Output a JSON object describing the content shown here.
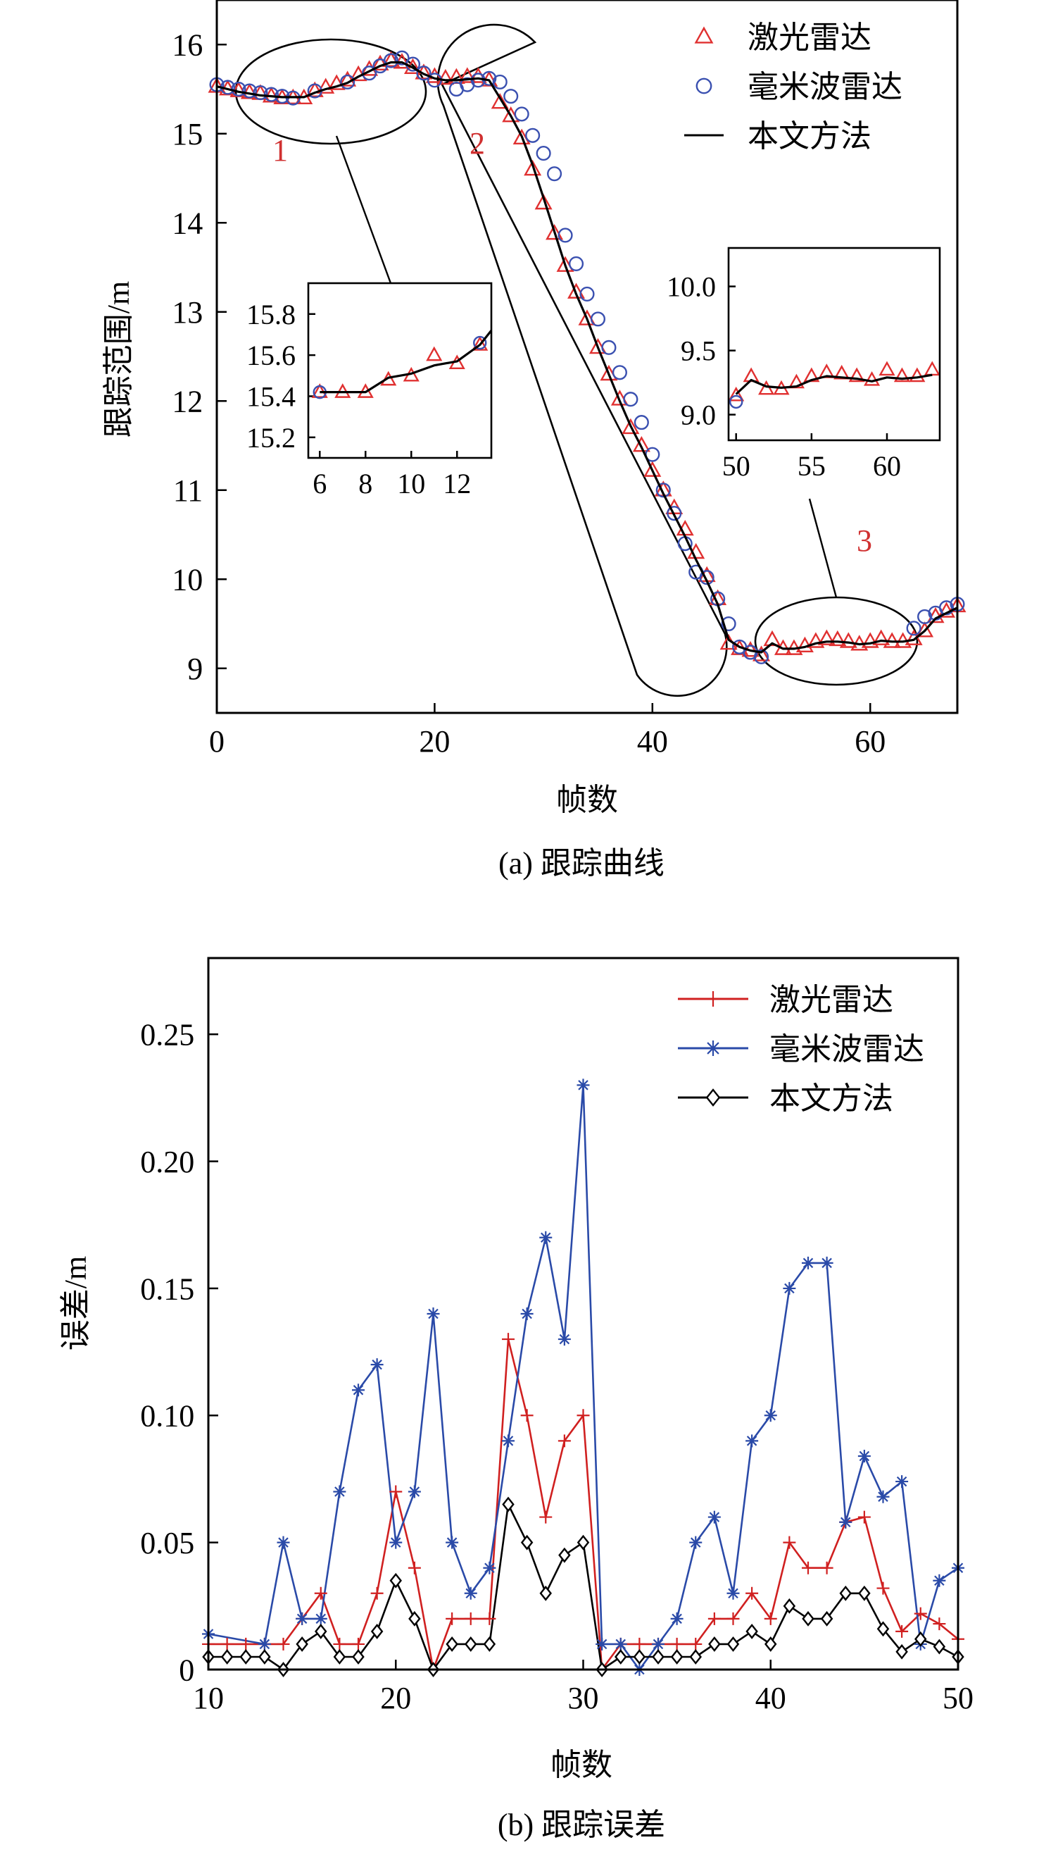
{
  "chart_data": [
    {
      "id": "a",
      "type": "line",
      "caption": "(a) 跟踪曲线",
      "xlabel": "帧数",
      "ylabel": "跟踪范围/m",
      "xlim": [
        0,
        68
      ],
      "ylim": [
        8.5,
        16.5
      ],
      "xticks": [
        0,
        20,
        40,
        60
      ],
      "yticks": [
        9,
        10,
        11,
        12,
        13,
        14,
        15,
        16
      ],
      "legend": {
        "position": "top-right",
        "entries": [
          {
            "name": "激光雷达",
            "marker": "triangle",
            "color": "#e03030"
          },
          {
            "name": "毫米波雷达",
            "marker": "circle",
            "color": "#3a50b0"
          },
          {
            "name": "本文方法",
            "marker": "line",
            "color": "#000000"
          }
        ]
      },
      "series": [
        {
          "name": "激光雷达",
          "marker": "triangle",
          "color": "#e03030",
          "x": [
            0,
            1,
            2,
            3,
            4,
            5,
            6,
            7,
            8,
            9,
            10,
            11,
            12,
            13,
            14,
            15,
            16,
            17,
            18,
            19,
            20,
            21,
            22,
            23,
            24,
            25,
            26,
            27,
            28,
            29,
            30,
            31,
            32,
            33,
            34,
            35,
            36,
            37,
            38,
            39,
            40,
            41,
            42,
            43,
            44,
            45,
            46,
            47,
            48,
            49,
            50,
            51,
            52,
            53,
            54,
            55,
            56,
            57,
            58,
            59,
            60,
            61,
            62,
            63,
            64,
            65,
            66,
            67,
            68
          ],
          "y": [
            15.53,
            15.5,
            15.48,
            15.46,
            15.45,
            15.42,
            15.4,
            15.4,
            15.4,
            15.48,
            15.52,
            15.56,
            15.6,
            15.66,
            15.72,
            15.78,
            15.82,
            15.8,
            15.74,
            15.68,
            15.64,
            15.62,
            15.63,
            15.64,
            15.64,
            15.6,
            15.35,
            15.2,
            14.95,
            14.6,
            14.22,
            13.88,
            13.52,
            13.22,
            12.92,
            12.6,
            12.3,
            12.02,
            11.7,
            11.5,
            11.22,
            11.0,
            10.8,
            10.56,
            10.3,
            10.04,
            9.78,
            9.28,
            9.22,
            9.2,
            9.15,
            9.32,
            9.22,
            9.22,
            9.25,
            9.3,
            9.33,
            9.32,
            9.3,
            9.27,
            9.3,
            9.33,
            9.3,
            9.3,
            9.33,
            9.42,
            9.58,
            9.64,
            9.7
          ]
        },
        {
          "name": "毫米波雷达",
          "marker": "circle",
          "color": "#3a50b0",
          "x": [
            0,
            1,
            2,
            3,
            4,
            5,
            6,
            7,
            9,
            12,
            14,
            15,
            16,
            17,
            18,
            19,
            20,
            22,
            23,
            24,
            25,
            26,
            27,
            28,
            29,
            30,
            31,
            32,
            33,
            34,
            35,
            36,
            37,
            38,
            39,
            40,
            41,
            42,
            43,
            44,
            45,
            46,
            47,
            48,
            49,
            50,
            64,
            65,
            66,
            67,
            68
          ],
          "y": [
            15.55,
            15.52,
            15.5,
            15.48,
            15.46,
            15.44,
            15.42,
            15.4,
            15.48,
            15.58,
            15.68,
            15.76,
            15.82,
            15.85,
            15.78,
            15.68,
            15.6,
            15.5,
            15.55,
            15.6,
            15.62,
            15.58,
            15.42,
            15.22,
            14.98,
            14.78,
            14.55,
            13.86,
            13.54,
            13.2,
            12.92,
            12.6,
            12.32,
            12.02,
            11.76,
            11.4,
            11.0,
            10.74,
            10.4,
            10.08,
            10.02,
            9.78,
            9.5,
            9.24,
            9.18,
            9.13,
            9.45,
            9.58,
            9.62,
            9.68,
            9.72
          ]
        },
        {
          "name": "本文方法",
          "marker": "line",
          "color": "#000000",
          "x": [
            0,
            1,
            2,
            3,
            4,
            5,
            6,
            7,
            8,
            9,
            10,
            11,
            12,
            13,
            14,
            15,
            16,
            17,
            18,
            19,
            20,
            21,
            22,
            23,
            24,
            25,
            26,
            27,
            28,
            29,
            30,
            31,
            32,
            33,
            34,
            35,
            36,
            37,
            38,
            39,
            40,
            41,
            42,
            43,
            44,
            45,
            46,
            47,
            48,
            49,
            50,
            51,
            52,
            53,
            54,
            55,
            56,
            57,
            58,
            59,
            60,
            61,
            62,
            63,
            64,
            65,
            66,
            67,
            68
          ],
          "y": [
            15.53,
            15.5,
            15.47,
            15.45,
            15.43,
            15.42,
            15.41,
            15.41,
            15.41,
            15.46,
            15.5,
            15.53,
            15.57,
            15.64,
            15.7,
            15.76,
            15.8,
            15.8,
            15.74,
            15.67,
            15.62,
            15.6,
            15.6,
            15.61,
            15.62,
            15.6,
            15.4,
            15.2,
            14.97,
            14.65,
            14.28,
            13.9,
            13.52,
            13.2,
            12.92,
            12.6,
            12.3,
            12.0,
            11.72,
            11.48,
            11.22,
            10.96,
            10.72,
            10.48,
            10.22,
            9.98,
            9.72,
            9.32,
            9.24,
            9.2,
            9.18,
            9.28,
            9.22,
            9.22,
            9.24,
            9.28,
            9.3,
            9.3,
            9.29,
            9.27,
            9.28,
            9.31,
            9.3,
            9.3,
            9.32,
            9.42,
            9.56,
            9.62,
            9.68
          ]
        }
      ],
      "annotations": [
        {
          "text": "1",
          "color": "#d03030"
        },
        {
          "text": "2",
          "color": "#d03030"
        },
        {
          "text": "3",
          "color": "#d03030"
        }
      ],
      "insets": [
        {
          "region": "1",
          "xlim": [
            5.5,
            13.5
          ],
          "ylim": [
            15.1,
            15.95
          ],
          "xticks": [
            6,
            8,
            10,
            12
          ],
          "yticks": [
            15.2,
            15.4,
            15.6,
            15.8
          ],
          "ytick_labels": [
            "15.2",
            "15.4",
            "15.6",
            "15.8"
          ],
          "series": [
            {
              "name": "激光雷达",
              "marker": "triangle",
              "color": "#e03030",
              "x": [
                6,
                7,
                8,
                9,
                10,
                11,
                12,
                13
              ],
              "y": [
                15.42,
                15.42,
                15.42,
                15.48,
                15.5,
                15.6,
                15.56,
                15.65
              ]
            },
            {
              "name": "毫米波雷达",
              "marker": "circle",
              "color": "#3a50b0",
              "x": [
                6,
                13
              ],
              "y": [
                15.42,
                15.66
              ]
            },
            {
              "name": "本文方法",
              "marker": "line",
              "color": "#000000",
              "x": [
                6,
                7,
                8,
                9,
                10,
                11,
                12,
                13,
                13.5
              ],
              "y": [
                15.42,
                15.42,
                15.42,
                15.49,
                15.51,
                15.55,
                15.57,
                15.65,
                15.72
              ]
            }
          ]
        },
        {
          "region": "3",
          "xlim": [
            49.5,
            63.5
          ],
          "ylim": [
            8.8,
            10.3
          ],
          "xticks": [
            50,
            55,
            60
          ],
          "yticks": [
            9.0,
            9.5,
            10.0
          ],
          "ytick_labels": [
            "9.0",
            "9.5",
            "10.0"
          ],
          "series": [
            {
              "name": "激光雷达",
              "marker": "triangle",
              "color": "#e03030",
              "x": [
                50,
                51,
                52,
                53,
                54,
                55,
                56,
                57,
                58,
                59,
                60,
                61,
                62,
                63
              ],
              "y": [
                9.15,
                9.3,
                9.2,
                9.2,
                9.25,
                9.3,
                9.33,
                9.32,
                9.3,
                9.27,
                9.35,
                9.3,
                9.3,
                9.35
              ]
            },
            {
              "name": "毫米波雷达",
              "marker": "circle",
              "color": "#3a50b0",
              "x": [
                50
              ],
              "y": [
                9.1
              ]
            },
            {
              "name": "本文方法",
              "marker": "line",
              "color": "#000000",
              "x": [
                50,
                51,
                52,
                53,
                54,
                55,
                56,
                57,
                58,
                59,
                60,
                61,
                62,
                63
              ],
              "y": [
                9.16,
                9.27,
                9.22,
                9.21,
                9.22,
                9.27,
                9.3,
                9.29,
                9.28,
                9.26,
                9.29,
                9.28,
                9.29,
                9.31
              ]
            }
          ]
        }
      ]
    },
    {
      "id": "b",
      "type": "line",
      "caption": "(b) 跟踪误差",
      "xlabel": "帧数",
      "ylabel": "误差/m",
      "xlim": [
        10,
        50
      ],
      "ylim": [
        0,
        0.28
      ],
      "xticks": [
        10,
        20,
        30,
        40,
        50
      ],
      "yticks": [
        0,
        0.05,
        0.1,
        0.15,
        0.2,
        0.25
      ],
      "ytick_labels": [
        "0",
        "0.05",
        "0.10",
        "0.15",
        "0.20",
        "0.25"
      ],
      "legend": {
        "position": "top-right",
        "entries": [
          {
            "name": "激光雷达",
            "marker": "plus",
            "color": "#d02020"
          },
          {
            "name": "毫米波雷达",
            "marker": "star",
            "color": "#2a4aa8"
          },
          {
            "name": "本文方法",
            "marker": "diamond",
            "color": "#000000"
          }
        ]
      },
      "series": [
        {
          "name": "激光雷达",
          "marker": "plus",
          "color": "#d02020",
          "x": [
            10,
            11,
            12,
            13,
            14,
            15,
            16,
            17,
            18,
            19,
            20,
            21,
            22,
            23,
            24,
            25,
            26,
            27,
            28,
            29,
            30,
            31,
            32,
            33,
            34,
            35,
            36,
            37,
            38,
            39,
            40,
            41,
            42,
            43,
            44,
            45,
            46,
            47,
            48,
            49,
            50
          ],
          "y": [
            0.01,
            0.01,
            0.01,
            0.01,
            0.01,
            0.02,
            0.03,
            0.01,
            0.01,
            0.03,
            0.07,
            0.04,
            0.0,
            0.02,
            0.02,
            0.02,
            0.13,
            0.1,
            0.06,
            0.09,
            0.1,
            0.0,
            0.01,
            0.01,
            0.01,
            0.01,
            0.01,
            0.02,
            0.02,
            0.03,
            0.02,
            0.05,
            0.04,
            0.04,
            0.058,
            0.06,
            0.032,
            0.015,
            0.022,
            0.018,
            0.012
          ]
        },
        {
          "name": "毫米波雷达",
          "marker": "star",
          "color": "#2a4aa8",
          "x": [
            10,
            13,
            14,
            15,
            16,
            17,
            18,
            19,
            20,
            21,
            22,
            23,
            24,
            25,
            26,
            27,
            28,
            29,
            30,
            31,
            32,
            33,
            34,
            35,
            36,
            37,
            38,
            39,
            40,
            41,
            42,
            43,
            44,
            45,
            46,
            47,
            48,
            49,
            50
          ],
          "y": [
            0.014,
            0.01,
            0.05,
            0.02,
            0.02,
            0.07,
            0.11,
            0.12,
            0.05,
            0.07,
            0.14,
            0.05,
            0.03,
            0.04,
            0.09,
            0.14,
            0.17,
            0.13,
            0.23,
            0.01,
            0.01,
            0.0,
            0.01,
            0.02,
            0.05,
            0.06,
            0.03,
            0.09,
            0.1,
            0.15,
            0.16,
            0.16,
            0.058,
            0.084,
            0.068,
            0.074,
            0.01,
            0.035,
            0.04
          ]
        },
        {
          "name": "本文方法",
          "marker": "diamond",
          "color": "#000000",
          "x": [
            10,
            11,
            12,
            13,
            14,
            15,
            16,
            17,
            18,
            19,
            20,
            21,
            22,
            23,
            24,
            25,
            26,
            27,
            28,
            29,
            30,
            31,
            32,
            33,
            34,
            35,
            36,
            37,
            38,
            39,
            40,
            41,
            42,
            43,
            44,
            45,
            46,
            47,
            48,
            49,
            50
          ],
          "y": [
            0.005,
            0.005,
            0.005,
            0.005,
            0.0,
            0.01,
            0.015,
            0.005,
            0.005,
            0.015,
            0.035,
            0.02,
            0.0,
            0.01,
            0.01,
            0.01,
            0.065,
            0.05,
            0.03,
            0.045,
            0.05,
            0.0,
            0.005,
            0.005,
            0.005,
            0.005,
            0.005,
            0.01,
            0.01,
            0.015,
            0.01,
            0.025,
            0.02,
            0.02,
            0.03,
            0.03,
            0.016,
            0.007,
            0.012,
            0.009,
            0.005
          ]
        }
      ]
    }
  ]
}
